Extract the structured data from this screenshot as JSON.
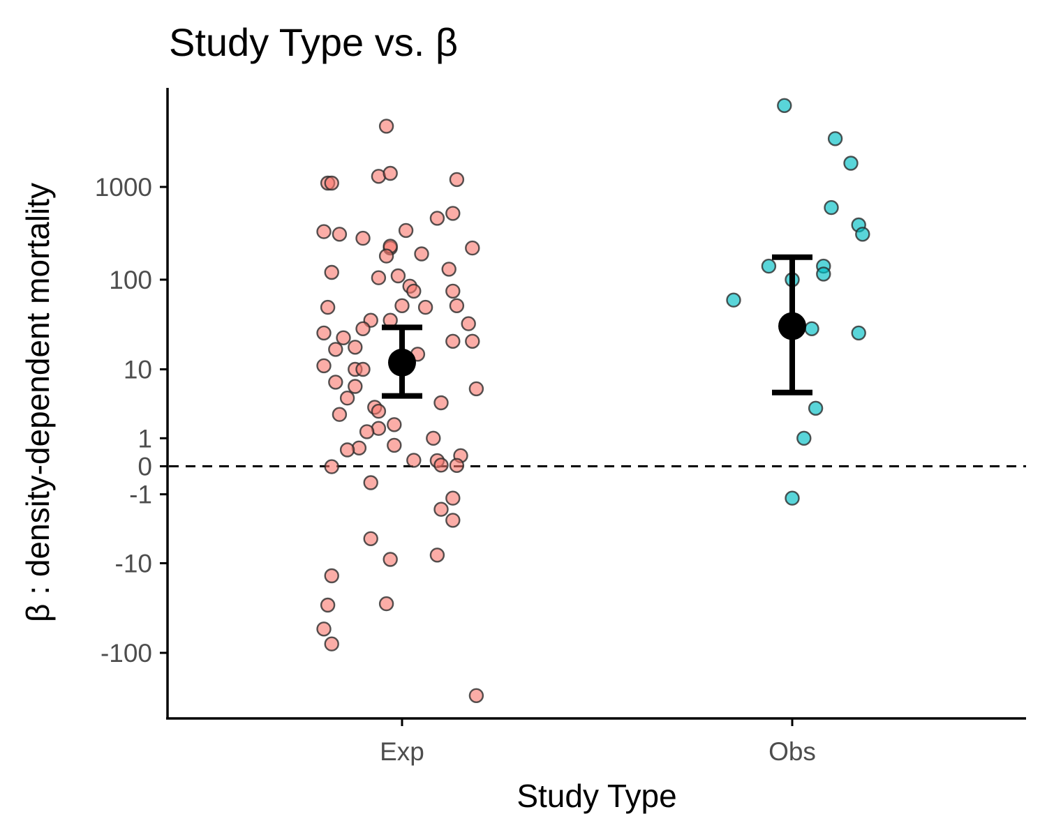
{
  "chart_data": {
    "type": "scatter",
    "title": "Study Type vs. β",
    "xlabel": "Study Type",
    "ylabel": "β : density-dependent mortality",
    "y_scale": "pseudo-log (symmetric log)",
    "y_ticks": [
      -100,
      -10,
      -1,
      0,
      1,
      10,
      100,
      1000
    ],
    "y_tick_labels": [
      "-100",
      "-10",
      "-1",
      "0",
      "1",
      "10",
      "100",
      "1000"
    ],
    "ylim": [
      -450,
      12000
    ],
    "categories": [
      "Exp",
      "Obs"
    ],
    "reference_line": {
      "y": 0,
      "style": "dashed",
      "color": "#000000"
    },
    "grid": false,
    "legend": "none",
    "series": [
      {
        "category": "Exp",
        "color": "#F8766D",
        "points": [
          {
            "x": -0.04,
            "y": 4500
          },
          {
            "x": -0.19,
            "y": 1100
          },
          {
            "x": -0.18,
            "y": 1100
          },
          {
            "x": -0.06,
            "y": 1300
          },
          {
            "x": -0.03,
            "y": 1400
          },
          {
            "x": 0.14,
            "y": 1200
          },
          {
            "x": 0.13,
            "y": 520
          },
          {
            "x": 0.09,
            "y": 460
          },
          {
            "x": 0.01,
            "y": 340
          },
          {
            "x": -0.2,
            "y": 330
          },
          {
            "x": -0.16,
            "y": 310
          },
          {
            "x": -0.1,
            "y": 280
          },
          {
            "x": -0.03,
            "y": 220
          },
          {
            "x": -0.03,
            "y": 230
          },
          {
            "x": 0.18,
            "y": 220
          },
          {
            "x": -0.04,
            "y": 180
          },
          {
            "x": 0.05,
            "y": 190
          },
          {
            "x": -0.18,
            "y": 120
          },
          {
            "x": 0.12,
            "y": 130
          },
          {
            "x": -0.06,
            "y": 105
          },
          {
            "x": -0.01,
            "y": 110
          },
          {
            "x": 0.02,
            "y": 85
          },
          {
            "x": 0.03,
            "y": 75
          },
          {
            "x": 0.13,
            "y": 75
          },
          {
            "x": -0.19,
            "y": 50
          },
          {
            "x": 0,
            "y": 52
          },
          {
            "x": 0.06,
            "y": 50
          },
          {
            "x": 0.14,
            "y": 52
          },
          {
            "x": -0.03,
            "y": 36
          },
          {
            "x": -0.08,
            "y": 36
          },
          {
            "x": 0.17,
            "y": 33
          },
          {
            "x": -0.1,
            "y": 29
          },
          {
            "x": -0.2,
            "y": 26
          },
          {
            "x": -0.15,
            "y": 23
          },
          {
            "x": 0.13,
            "y": 21
          },
          {
            "x": 0.18,
            "y": 21
          },
          {
            "x": -0.12,
            "y": 18
          },
          {
            "x": -0.17,
            "y": 17
          },
          {
            "x": 0.04,
            "y": 15
          },
          {
            "x": -0.2,
            "y": 11
          },
          {
            "x": -0.12,
            "y": 10
          },
          {
            "x": -0.1,
            "y": 10
          },
          {
            "x": -0.17,
            "y": 7
          },
          {
            "x": -0.12,
            "y": 6.2
          },
          {
            "x": 0.19,
            "y": 5.8
          },
          {
            "x": -0.14,
            "y": 4.4
          },
          {
            "x": 0.1,
            "y": 3.8
          },
          {
            "x": -0.07,
            "y": 3.3
          },
          {
            "x": -0.06,
            "y": 2.9
          },
          {
            "x": -0.16,
            "y": 2.6
          },
          {
            "x": -0.02,
            "y": 1.8
          },
          {
            "x": -0.06,
            "y": 1.55
          },
          {
            "x": -0.09,
            "y": 1.35
          },
          {
            "x": 0.08,
            "y": 1.0
          },
          {
            "x": -0.02,
            "y": 0.68
          },
          {
            "x": -0.11,
            "y": 0.57
          },
          {
            "x": -0.14,
            "y": 0.5
          },
          {
            "x": 0.15,
            "y": 0.3
          },
          {
            "x": 0.03,
            "y": 0.16
          },
          {
            "x": 0.09,
            "y": 0.15
          },
          {
            "x": 0.1,
            "y": 0.03
          },
          {
            "x": 0.14,
            "y": 0.02
          },
          {
            "x": -0.18,
            "y": -0.01
          },
          {
            "x": -0.08,
            "y": -0.5
          },
          {
            "x": 0.13,
            "y": -1.2
          },
          {
            "x": 0.1,
            "y": -1.9
          },
          {
            "x": 0.13,
            "y": -2.8
          },
          {
            "x": -0.08,
            "y": -5
          },
          {
            "x": 0.09,
            "y": -8
          },
          {
            "x": -0.03,
            "y": -9
          },
          {
            "x": -0.18,
            "y": -14
          },
          {
            "x": -0.19,
            "y": -30
          },
          {
            "x": -0.04,
            "y": -29
          },
          {
            "x": -0.2,
            "y": -55
          },
          {
            "x": -0.18,
            "y": -80
          },
          {
            "x": 0.19,
            "y": -290
          }
        ]
      },
      {
        "category": "Obs",
        "color": "#00BFC4",
        "points": [
          {
            "x": -0.02,
            "y": 7500
          },
          {
            "x": 0.11,
            "y": 3300
          },
          {
            "x": 0.15,
            "y": 1800
          },
          {
            "x": 0.1,
            "y": 600
          },
          {
            "x": 0.17,
            "y": 390
          },
          {
            "x": 0.18,
            "y": 310
          },
          {
            "x": -0.06,
            "y": 140
          },
          {
            "x": 0.08,
            "y": 140
          },
          {
            "x": 0,
            "y": 100
          },
          {
            "x": 0.08,
            "y": 115
          },
          {
            "x": -0.15,
            "y": 60
          },
          {
            "x": 0.05,
            "y": 29
          },
          {
            "x": 0.17,
            "y": 26
          },
          {
            "x": 0.06,
            "y": 3.2
          },
          {
            "x": 0.03,
            "y": 1.0
          },
          {
            "x": 0,
            "y": -1.2
          }
        ]
      }
    ],
    "summary": [
      {
        "category": "Exp",
        "mean": 12,
        "lower": 4.7,
        "upper": 30
      },
      {
        "category": "Obs",
        "mean": 31,
        "lower": 5.2,
        "upper": 175
      }
    ]
  }
}
